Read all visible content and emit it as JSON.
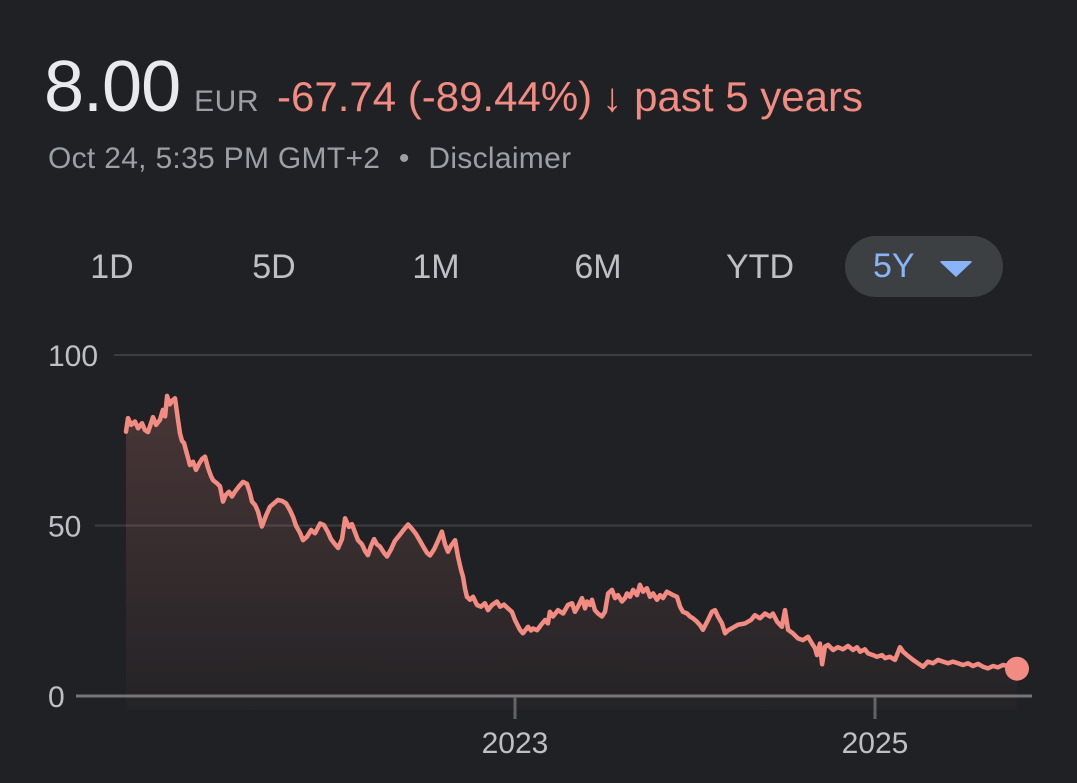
{
  "quote": {
    "price": "8.00",
    "currency": "EUR",
    "change": "-67.74 (-89.44%)",
    "change_direction": "down",
    "down_arrow_glyph": "↓",
    "period": "past 5 years",
    "timestamp": "Oct 24, 5:35 PM GMT+2",
    "separator": "•",
    "disclaimer_label": "Disclaimer"
  },
  "range_tabs": {
    "items": [
      {
        "label": "1D"
      },
      {
        "label": "5D"
      },
      {
        "label": "1M"
      },
      {
        "label": "6M"
      },
      {
        "label": "YTD"
      }
    ],
    "selected": {
      "label": "5Y",
      "has_dropdown": true
    }
  },
  "colors": {
    "background": "#202124",
    "price_text": "#e8eaed",
    "secondary_text": "#9aa0a6",
    "negative": "#f28b82",
    "tab_text": "#bdc1c6",
    "selected_tab_bg": "#3c4043",
    "selected_tab_text": "#8ab4f8",
    "gridline": "#3a3d41",
    "baseline": "#72757a",
    "tick": "#5f6368",
    "axis_label": "#bdc1c6",
    "area_fill_top": "rgba(242,139,130,0.22)",
    "area_fill_bottom": "rgba(242,139,130,0.02)"
  },
  "chart_data": {
    "type": "area",
    "title": "Stock price, past 5 years (EUR)",
    "x_unit": "year (decimal)",
    "xlabel": "",
    "ylabel": "",
    "x_ticks": [
      2023,
      2025
    ],
    "y_ticks": [
      0,
      50,
      100
    ],
    "xlim": [
      2020.82,
      2025.82
    ],
    "ylim": [
      0,
      100
    ],
    "grid": "horizontal",
    "legend": "none",
    "line_color": "#f28b82",
    "end_dot": true,
    "last_value": 8.0,
    "points": [
      [
        2020.839,
        77.5
      ],
      [
        2020.85,
        81.5
      ],
      [
        2020.867,
        79.5
      ],
      [
        2020.889,
        80.5
      ],
      [
        2020.906,
        78.5
      ],
      [
        2020.928,
        80.0
      ],
      [
        2020.944,
        78.0
      ],
      [
        2020.961,
        77.4
      ],
      [
        2020.978,
        80.0
      ],
      [
        2020.989,
        81.8
      ],
      [
        2021.006,
        79.5
      ],
      [
        2021.028,
        81.0
      ],
      [
        2021.044,
        83.9
      ],
      [
        2021.056,
        82.0
      ],
      [
        2021.067,
        88.0
      ],
      [
        2021.083,
        85.5
      ],
      [
        2021.094,
        86.5
      ],
      [
        2021.111,
        87.3
      ],
      [
        2021.128,
        81.0
      ],
      [
        2021.139,
        77.0
      ],
      [
        2021.15,
        74.8
      ],
      [
        2021.161,
        74.2
      ],
      [
        2021.172,
        72.0
      ],
      [
        2021.183,
        70.0
      ],
      [
        2021.194,
        67.7
      ],
      [
        2021.211,
        68.7
      ],
      [
        2021.228,
        66.3
      ],
      [
        2021.244,
        68.0
      ],
      [
        2021.261,
        69.5
      ],
      [
        2021.278,
        70.2
      ],
      [
        2021.294,
        67.0
      ],
      [
        2021.311,
        64.5
      ],
      [
        2021.322,
        63.3
      ],
      [
        2021.344,
        62.4
      ],
      [
        2021.361,
        61.5
      ],
      [
        2021.378,
        57.0
      ],
      [
        2021.394,
        59.0
      ],
      [
        2021.411,
        59.9
      ],
      [
        2021.428,
        58.5
      ],
      [
        2021.444,
        59.9
      ],
      [
        2021.467,
        61.5
      ],
      [
        2021.489,
        62.8
      ],
      [
        2021.511,
        62.2
      ],
      [
        2021.528,
        59.5
      ],
      [
        2021.539,
        57.0
      ],
      [
        2021.556,
        56.0
      ],
      [
        2021.572,
        54.1
      ],
      [
        2021.594,
        49.7
      ],
      [
        2021.617,
        53.0
      ],
      [
        2021.639,
        55.5
      ],
      [
        2021.661,
        56.5
      ],
      [
        2021.683,
        57.5
      ],
      [
        2021.706,
        57.2
      ],
      [
        2021.728,
        56.5
      ],
      [
        2021.75,
        54.5
      ],
      [
        2021.767,
        52.5
      ],
      [
        2021.783,
        50.0
      ],
      [
        2021.806,
        47.8
      ],
      [
        2021.822,
        45.7
      ],
      [
        2021.844,
        46.7
      ],
      [
        2021.867,
        48.7
      ],
      [
        2021.889,
        47.7
      ],
      [
        2021.917,
        50.6
      ],
      [
        2021.939,
        50.1
      ],
      [
        2021.961,
        48.0
      ],
      [
        2021.978,
        46.0
      ],
      [
        2021.994,
        44.9
      ],
      [
        2022.017,
        43.4
      ],
      [
        2022.039,
        46.0
      ],
      [
        2022.056,
        52.1
      ],
      [
        2022.078,
        49.6
      ],
      [
        2022.094,
        50.4
      ],
      [
        2022.111,
        48.0
      ],
      [
        2022.128,
        45.7
      ],
      [
        2022.15,
        44.5
      ],
      [
        2022.167,
        42.5
      ],
      [
        2022.183,
        41.3
      ],
      [
        2022.2,
        44.0
      ],
      [
        2022.217,
        46.0
      ],
      [
        2022.233,
        44.5
      ],
      [
        2022.25,
        43.8
      ],
      [
        2022.272,
        42.0
      ],
      [
        2022.289,
        40.9
      ],
      [
        2022.311,
        43.0
      ],
      [
        2022.333,
        45.5
      ],
      [
        2022.356,
        47.0
      ],
      [
        2022.378,
        48.5
      ],
      [
        2022.406,
        50.3
      ],
      [
        2022.428,
        49.0
      ],
      [
        2022.45,
        47.5
      ],
      [
        2022.472,
        45.5
      ],
      [
        2022.494,
        43.5
      ],
      [
        2022.511,
        42.0
      ],
      [
        2022.528,
        41.2
      ],
      [
        2022.55,
        43.0
      ],
      [
        2022.572,
        45.5
      ],
      [
        2022.594,
        48.2
      ],
      [
        2022.611,
        44.5
      ],
      [
        2022.628,
        42.3
      ],
      [
        2022.644,
        44.0
      ],
      [
        2022.667,
        45.7
      ],
      [
        2022.683,
        41.0
      ],
      [
        2022.7,
        37.0
      ],
      [
        2022.711,
        35.0
      ],
      [
        2022.722,
        31.5
      ],
      [
        2022.733,
        29.1
      ],
      [
        2022.75,
        28.2
      ],
      [
        2022.767,
        29.1
      ],
      [
        2022.789,
        26.7
      ],
      [
        2022.811,
        26.2
      ],
      [
        2022.833,
        27.2
      ],
      [
        2022.85,
        25.2
      ],
      [
        2022.872,
        26.7
      ],
      [
        2022.9,
        27.7
      ],
      [
        2022.917,
        26.2
      ],
      [
        2022.939,
        26.8
      ],
      [
        2022.961,
        25.7
      ],
      [
        2022.983,
        24.7
      ],
      [
        2023.0,
        22.3
      ],
      [
        2023.028,
        19.4
      ],
      [
        2023.044,
        18.4
      ],
      [
        2023.072,
        20.3
      ],
      [
        2023.089,
        19.2
      ],
      [
        2023.1,
        19.8
      ],
      [
        2023.122,
        19.3
      ],
      [
        2023.144,
        20.8
      ],
      [
        2023.167,
        22.3
      ],
      [
        2023.183,
        21.3
      ],
      [
        2023.194,
        24.7
      ],
      [
        2023.211,
        23.3
      ],
      [
        2023.239,
        25.2
      ],
      [
        2023.267,
        24.2
      ],
      [
        2023.294,
        26.7
      ],
      [
        2023.317,
        27.2
      ],
      [
        2023.333,
        24.7
      ],
      [
        2023.35,
        26.2
      ],
      [
        2023.372,
        28.7
      ],
      [
        2023.389,
        25.7
      ],
      [
        2023.4,
        27.7
      ],
      [
        2023.417,
        26.7
      ],
      [
        2023.428,
        28.2
      ],
      [
        2023.444,
        25.2
      ],
      [
        2023.461,
        24.2
      ],
      [
        2023.483,
        23.3
      ],
      [
        2023.5,
        24.7
      ],
      [
        2023.517,
        30.1
      ],
      [
        2023.539,
        31.1
      ],
      [
        2023.556,
        28.7
      ],
      [
        2023.572,
        29.6
      ],
      [
        2023.594,
        27.7
      ],
      [
        2023.611,
        28.7
      ],
      [
        2023.622,
        30.1
      ],
      [
        2023.639,
        29.1
      ],
      [
        2023.656,
        31.1
      ],
      [
        2023.678,
        29.6
      ],
      [
        2023.694,
        32.6
      ],
      [
        2023.711,
        30.6
      ],
      [
        2023.733,
        31.6
      ],
      [
        2023.75,
        29.1
      ],
      [
        2023.767,
        30.1
      ],
      [
        2023.789,
        28.2
      ],
      [
        2023.806,
        29.6
      ],
      [
        2023.822,
        28.7
      ],
      [
        2023.844,
        30.6
      ],
      [
        2023.861,
        30.1
      ],
      [
        2023.878,
        29.6
      ],
      [
        2023.9,
        29.1
      ],
      [
        2023.917,
        26.2
      ],
      [
        2023.933,
        24.7
      ],
      [
        2023.956,
        24.2
      ],
      [
        2023.972,
        23.3
      ],
      [
        2023.989,
        22.8
      ],
      [
        2024.011,
        21.8
      ],
      [
        2024.028,
        20.8
      ],
      [
        2024.044,
        19.4
      ],
      [
        2024.072,
        22.3
      ],
      [
        2024.094,
        24.7
      ],
      [
        2024.111,
        25.2
      ],
      [
        2024.128,
        23.3
      ],
      [
        2024.15,
        21.3
      ],
      [
        2024.167,
        18.4
      ],
      [
        2024.183,
        19.2
      ],
      [
        2024.206,
        19.9
      ],
      [
        2024.222,
        20.4
      ],
      [
        2024.239,
        20.9
      ],
      [
        2024.261,
        21.1
      ],
      [
        2024.278,
        21.3
      ],
      [
        2024.294,
        21.8
      ],
      [
        2024.311,
        22.3
      ],
      [
        2024.333,
        23.7
      ],
      [
        2024.361,
        22.8
      ],
      [
        2024.389,
        24.2
      ],
      [
        2024.417,
        23.3
      ],
      [
        2024.433,
        24.2
      ],
      [
        2024.456,
        21.8
      ],
      [
        2024.483,
        20.3
      ],
      [
        2024.5,
        25.2
      ],
      [
        2024.517,
        19.4
      ],
      [
        2024.544,
        18.4
      ],
      [
        2024.572,
        16.9
      ],
      [
        2024.6,
        16.4
      ],
      [
        2024.628,
        17.4
      ],
      [
        2024.65,
        15.4
      ],
      [
        2024.667,
        14.0
      ],
      [
        2024.678,
        12.0
      ],
      [
        2024.694,
        15.4
      ],
      [
        2024.706,
        9.3
      ],
      [
        2024.722,
        14.5
      ],
      [
        2024.739,
        15.0
      ],
      [
        2024.767,
        13.5
      ],
      [
        2024.794,
        14.3
      ],
      [
        2024.822,
        13.7
      ],
      [
        2024.85,
        14.7
      ],
      [
        2024.878,
        13.5
      ],
      [
        2024.9,
        14.3
      ],
      [
        2024.917,
        13.0
      ],
      [
        2024.944,
        13.7
      ],
      [
        2024.961,
        12.5
      ],
      [
        2024.989,
        12.0
      ],
      [
        2025.011,
        11.5
      ],
      [
        2025.039,
        12.0
      ],
      [
        2025.056,
        11.1
      ],
      [
        2025.083,
        11.5
      ],
      [
        2025.111,
        10.6
      ],
      [
        2025.139,
        14.3
      ],
      [
        2025.156,
        13.0
      ],
      [
        2025.178,
        12.0
      ],
      [
        2025.211,
        10.6
      ],
      [
        2025.239,
        9.6
      ],
      [
        2025.267,
        8.6
      ],
      [
        2025.294,
        10.1
      ],
      [
        2025.322,
        9.6
      ],
      [
        2025.35,
        10.6
      ],
      [
        2025.378,
        10.1
      ],
      [
        2025.406,
        9.6
      ],
      [
        2025.433,
        10.1
      ],
      [
        2025.461,
        9.6
      ],
      [
        2025.489,
        9.1
      ],
      [
        2025.517,
        9.6
      ],
      [
        2025.544,
        8.8
      ],
      [
        2025.572,
        9.4
      ],
      [
        2025.6,
        8.6
      ],
      [
        2025.628,
        8.1
      ],
      [
        2025.656,
        8.8
      ],
      [
        2025.683,
        8.4
      ],
      [
        2025.711,
        9.1
      ],
      [
        2025.739,
        8.8
      ],
      [
        2025.767,
        8.6
      ],
      [
        2025.789,
        8.0
      ]
    ]
  }
}
